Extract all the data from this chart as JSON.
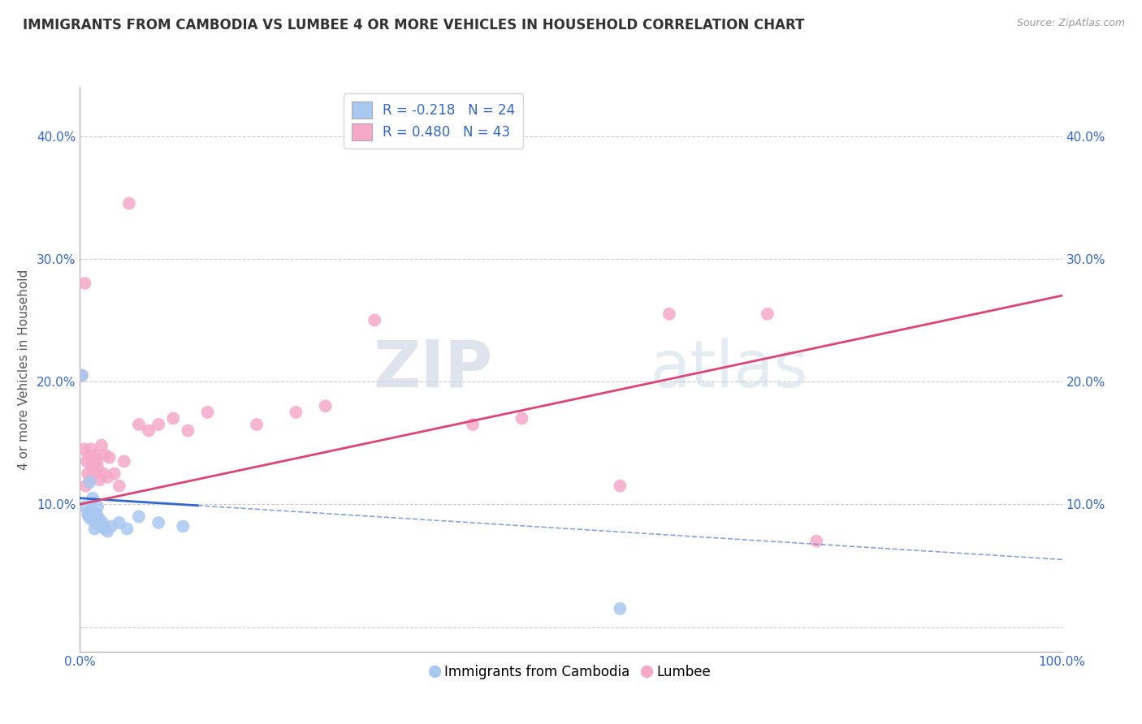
{
  "title": "IMMIGRANTS FROM CAMBODIA VS LUMBEE 4 OR MORE VEHICLES IN HOUSEHOLD CORRELATION CHART",
  "source": "Source: ZipAtlas.com",
  "ylabel": "4 or more Vehicles in Household",
  "xlim": [
    0.0,
    100.0
  ],
  "ylim": [
    -2.0,
    44.0
  ],
  "yticks": [
    0.0,
    10.0,
    20.0,
    30.0,
    40.0
  ],
  "ytick_labels": [
    "",
    "10.0%",
    "20.0%",
    "30.0%",
    "40.0%"
  ],
  "legend_blue_label": "Immigrants from Cambodia",
  "legend_pink_label": "Lumbee",
  "blue_color": "#a8c8f0",
  "pink_color": "#f5a8c8",
  "blue_line_color": "#3366cc",
  "pink_line_color": "#dd4477",
  "blue_scatter": [
    [
      0.2,
      20.5
    ],
    [
      0.5,
      9.8
    ],
    [
      0.8,
      9.2
    ],
    [
      0.9,
      9.0
    ],
    [
      1.0,
      11.8
    ],
    [
      1.1,
      8.8
    ],
    [
      1.2,
      9.5
    ],
    [
      1.3,
      10.5
    ],
    [
      1.5,
      8.0
    ],
    [
      1.6,
      8.5
    ],
    [
      1.7,
      9.2
    ],
    [
      1.8,
      9.8
    ],
    [
      2.0,
      8.8
    ],
    [
      2.1,
      8.2
    ],
    [
      2.3,
      8.5
    ],
    [
      2.5,
      8.0
    ],
    [
      2.8,
      7.8
    ],
    [
      3.2,
      8.2
    ],
    [
      4.0,
      8.5
    ],
    [
      4.8,
      8.0
    ],
    [
      6.0,
      9.0
    ],
    [
      8.0,
      8.5
    ],
    [
      10.5,
      8.2
    ],
    [
      55.0,
      1.5
    ]
  ],
  "pink_scatter": [
    [
      0.2,
      20.5
    ],
    [
      0.4,
      14.5
    ],
    [
      0.5,
      28.0
    ],
    [
      0.6,
      11.5
    ],
    [
      0.7,
      13.5
    ],
    [
      0.8,
      12.5
    ],
    [
      0.9,
      14.0
    ],
    [
      1.0,
      12.0
    ],
    [
      1.1,
      14.5
    ],
    [
      1.2,
      13.2
    ],
    [
      1.3,
      13.0
    ],
    [
      1.4,
      13.8
    ],
    [
      1.5,
      12.5
    ],
    [
      1.6,
      14.0
    ],
    [
      1.7,
      13.5
    ],
    [
      1.8,
      13.0
    ],
    [
      2.0,
      12.0
    ],
    [
      2.2,
      14.8
    ],
    [
      2.4,
      12.5
    ],
    [
      2.6,
      14.0
    ],
    [
      2.8,
      12.2
    ],
    [
      3.0,
      13.8
    ],
    [
      3.5,
      12.5
    ],
    [
      4.0,
      11.5
    ],
    [
      4.5,
      13.5
    ],
    [
      5.0,
      34.5
    ],
    [
      6.0,
      16.5
    ],
    [
      7.0,
      16.0
    ],
    [
      8.0,
      16.5
    ],
    [
      9.5,
      17.0
    ],
    [
      11.0,
      16.0
    ],
    [
      13.0,
      17.5
    ],
    [
      18.0,
      16.5
    ],
    [
      22.0,
      17.5
    ],
    [
      25.0,
      18.0
    ],
    [
      30.0,
      25.0
    ],
    [
      40.0,
      16.5
    ],
    [
      45.0,
      17.0
    ],
    [
      55.0,
      11.5
    ],
    [
      60.0,
      25.5
    ],
    [
      70.0,
      25.5
    ],
    [
      75.0,
      7.0
    ]
  ],
  "blue_trend_x0": 0.0,
  "blue_trend_y0": 10.5,
  "blue_trend_x1": 100.0,
  "blue_trend_y1": 5.5,
  "blue_solid_x_end": 12.0,
  "pink_trend_x0": 0.0,
  "pink_trend_y0": 10.0,
  "pink_trend_x1": 100.0,
  "pink_trend_y1": 27.0,
  "watermark_zip": "ZIP",
  "watermark_atlas": "atlas",
  "background_color": "#ffffff",
  "grid_color": "#cccccc",
  "title_fontsize": 12,
  "axis_label_fontsize": 11,
  "tick_fontsize": 11,
  "legend_fontsize": 12
}
